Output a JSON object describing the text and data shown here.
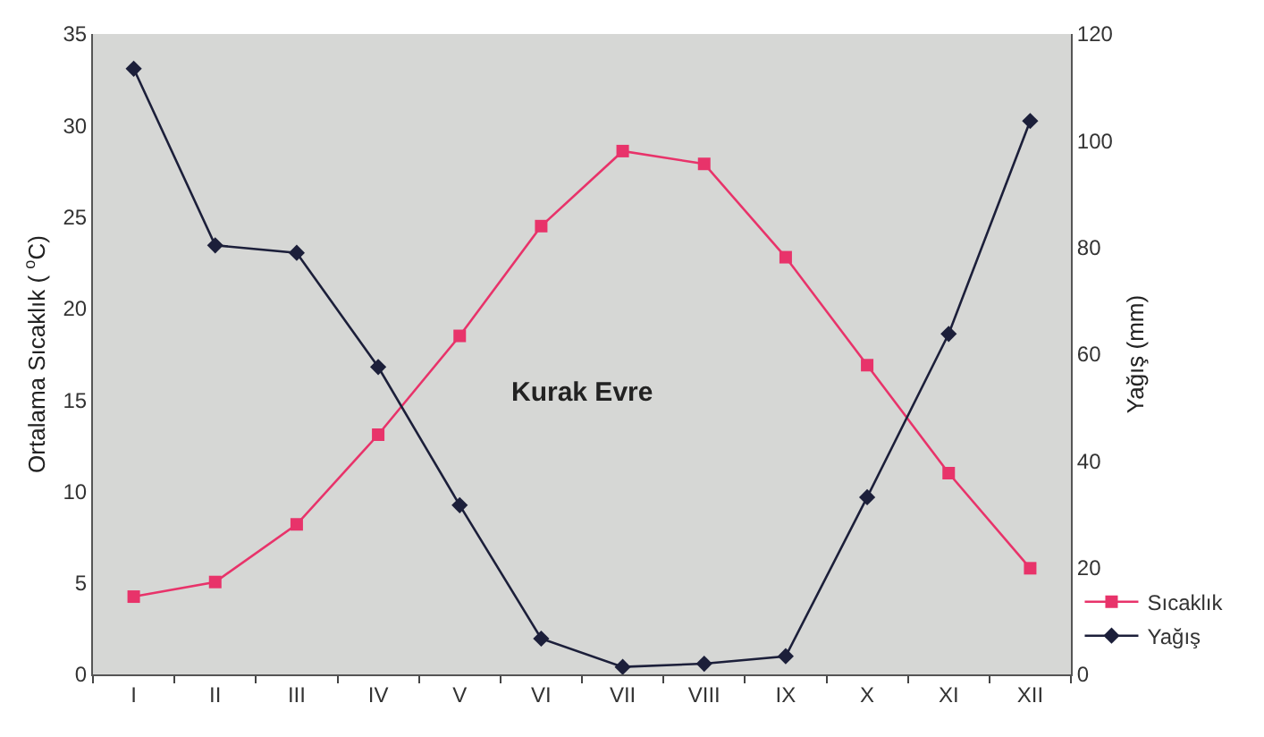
{
  "chart_data": {
    "type": "line",
    "categories": [
      "I",
      "II",
      "III",
      "IV",
      "V",
      "VI",
      "VII",
      "VIII",
      "IX",
      "X",
      "XI",
      "XII"
    ],
    "ylabel": "Ortalama Sıcaklık ( $^{o}$C)",
    "y2label": "Yağış (mm)",
    "ylim": [
      0,
      35
    ],
    "yticks": [
      0,
      5,
      10,
      15,
      20,
      25,
      30,
      35
    ],
    "y2lim": [
      0,
      120
    ],
    "y2ticks": [
      0,
      20,
      40,
      60,
      80,
      100,
      120
    ],
    "series": [
      {
        "name": "Sıcaklık",
        "color": "#e8336a",
        "marker": "square",
        "values": [
          4.25,
          5.05,
          8.2,
          13.1,
          18.5,
          24.5,
          28.6,
          27.9,
          22.8,
          16.9,
          11.0,
          5.8
        ]
      },
      {
        "name": "Yağış",
        "color": "#1c1f3a",
        "marker": "diamond",
        "axis": "y2",
        "values": [
          113.5,
          80.4,
          79.0,
          57.6,
          31.7,
          6.7,
          1.4,
          2.0,
          3.4,
          33.2,
          63.8,
          103.7
        ]
      }
    ],
    "annotations": [
      "Kurak Evre"
    ],
    "grid": false,
    "legend": "bottom right"
  }
}
